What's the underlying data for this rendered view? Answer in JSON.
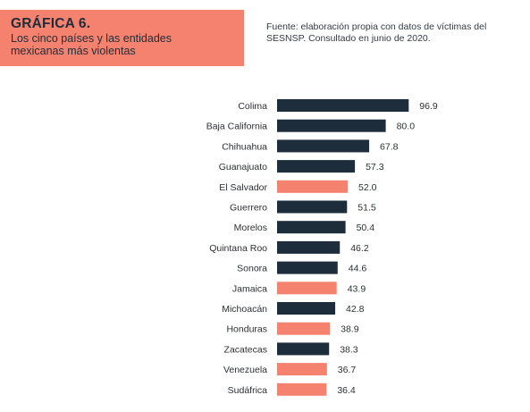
{
  "header": {
    "title": "GRÁFICA 6.",
    "subtitle": "Los cinco países y las entidades mexicanas más violentas",
    "source": "Fuente: elaboración propia con datos de víctimas del SESNSP. Consultado en junio de 2020."
  },
  "colors": {
    "mexico": "#1e2d3b",
    "country": "#f4826f",
    "header_bg": "#f4826f"
  },
  "chart_data": {
    "type": "bar",
    "orientation": "horizontal",
    "categories": [
      "Colima",
      "Baja California",
      "Chihuahua",
      "Guanajuato",
      "El Salvador",
      "Guerrero",
      "Morelos",
      "Quintana Roo",
      "Sonora",
      "Jamaica",
      "Michoacán",
      "Honduras",
      "Zacatecas",
      "Venezuela",
      "Sudáfrica"
    ],
    "values": [
      96.9,
      80.0,
      67.8,
      57.3,
      52.0,
      51.5,
      50.4,
      46.2,
      44.6,
      43.9,
      42.8,
      38.9,
      38.3,
      36.7,
      36.4
    ],
    "value_labels": [
      "96.9",
      "80.0",
      "67.8",
      "57.3",
      "52.0",
      "51.5",
      "50.4",
      "46.2",
      "44.6",
      "43.9",
      "42.8",
      "38.9",
      "38.3",
      "36.7",
      "36.4"
    ],
    "groups": [
      "mexico",
      "mexico",
      "mexico",
      "mexico",
      "country",
      "mexico",
      "mexico",
      "mexico",
      "mexico",
      "country",
      "mexico",
      "country",
      "mexico",
      "country",
      "country"
    ],
    "xlim": [
      0,
      100
    ],
    "grid": false,
    "title": "",
    "xlabel": "",
    "ylabel": ""
  }
}
